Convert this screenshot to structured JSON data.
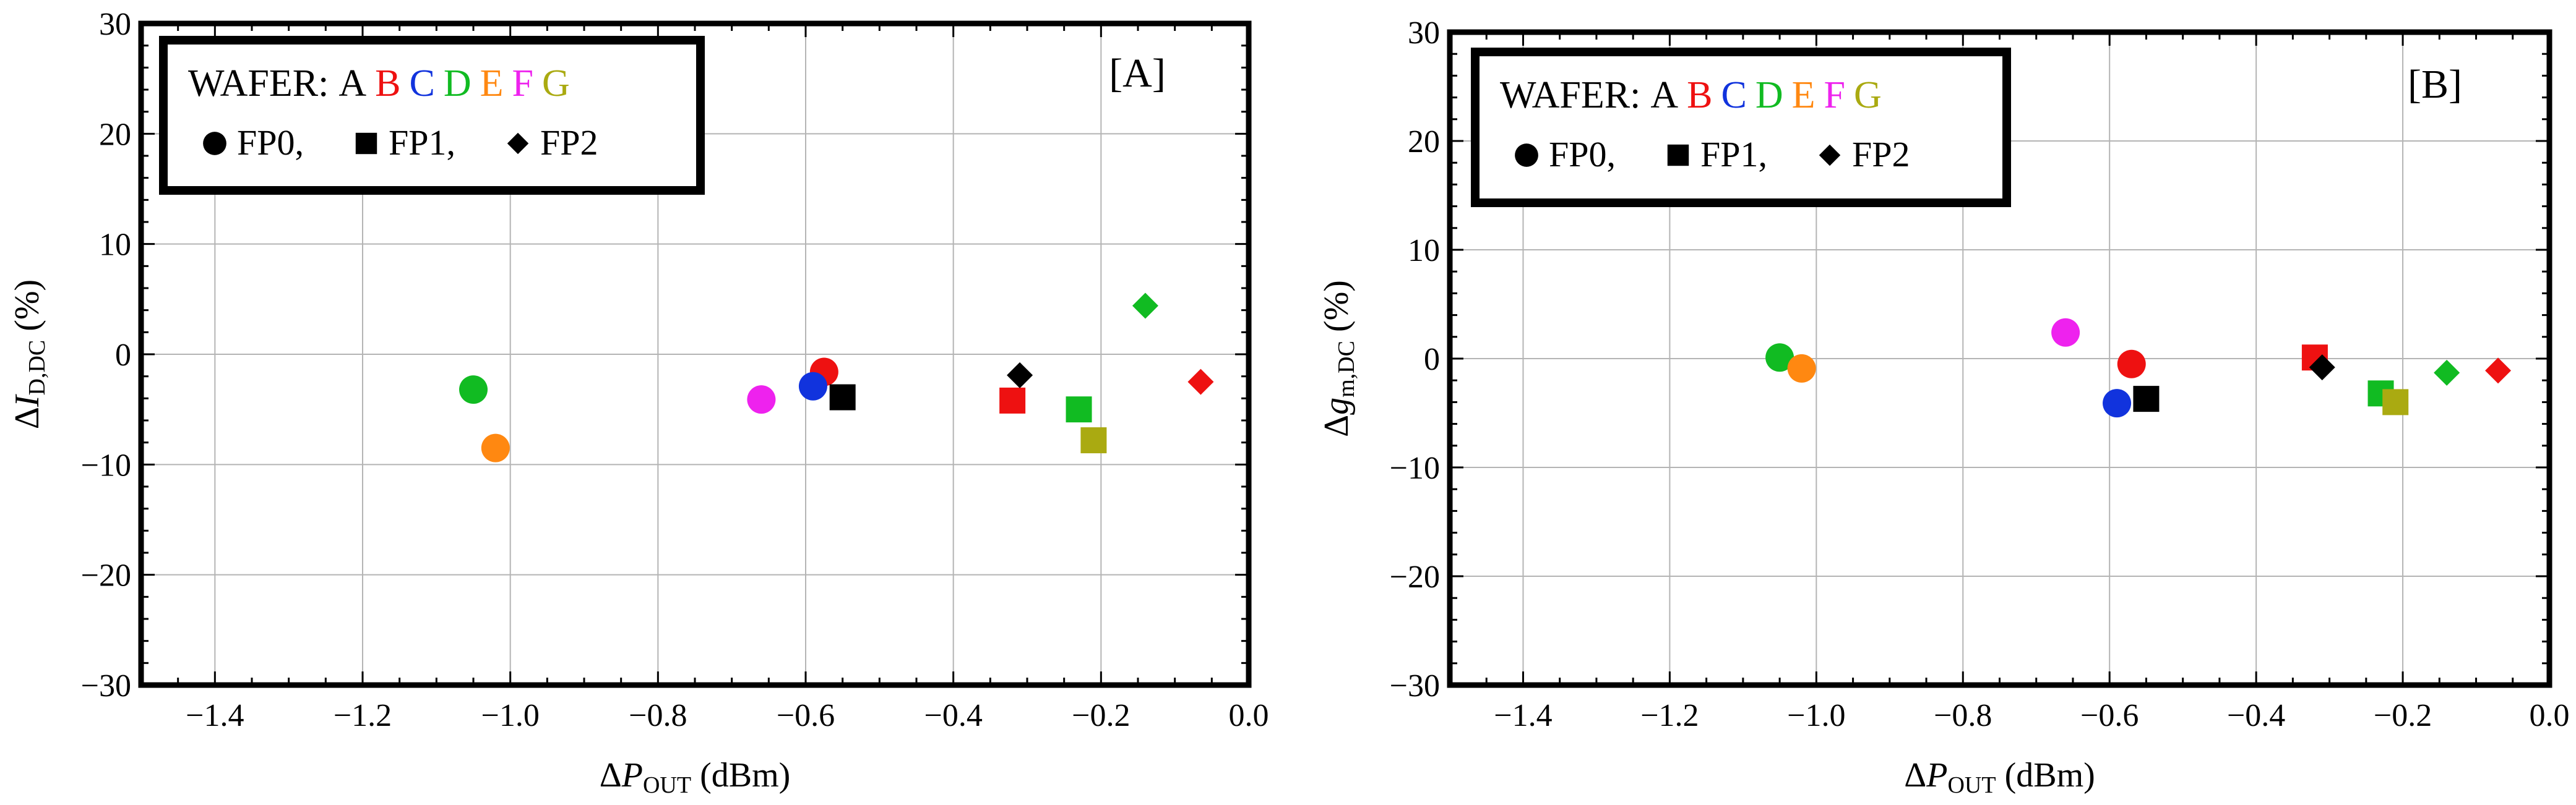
{
  "figure_legend": {
    "wafer_prefix": "WAFER:",
    "wafers": [
      {
        "letter": "A",
        "color": "#000000"
      },
      {
        "letter": "B",
        "color": "#ee1111"
      },
      {
        "letter": "C",
        "color": "#1133dd"
      },
      {
        "letter": "D",
        "color": "#11bb22"
      },
      {
        "letter": "E",
        "color": "#ff8811"
      },
      {
        "letter": "F",
        "color": "#ee22ee"
      },
      {
        "letter": "G",
        "color": "#aaaa11"
      }
    ],
    "fp_items": [
      {
        "shape": "circle",
        "label": "FP0,"
      },
      {
        "shape": "square",
        "label": "FP1,"
      },
      {
        "shape": "diamond",
        "label": "FP2"
      }
    ]
  },
  "chart_data": [
    {
      "type": "scatter",
      "panel_label": "[A]",
      "xlabel": {
        "prefix": "Δ",
        "var": "P",
        "sub": "OUT",
        "suffix": " (dBm)"
      },
      "ylabel": {
        "prefix": "Δ",
        "var": "I",
        "sub": "D,DC",
        "suffix": " (%)"
      },
      "xlim": [
        -1.5,
        0.0
      ],
      "ylim": [
        -30,
        30
      ],
      "xticks": [
        -1.4,
        -1.2,
        -1.0,
        -0.8,
        -0.6,
        -0.4,
        -0.2,
        0.0
      ],
      "xtick_labels": [
        "−1.4",
        "−1.2",
        "−1.0",
        "−0.8",
        "−0.6",
        "−0.4",
        "−0.2",
        "0.0"
      ],
      "yticks": [
        -30,
        -20,
        -10,
        0,
        10,
        20,
        30
      ],
      "ytick_labels": [
        "−30",
        "−20",
        "−10",
        "0",
        "10",
        "20",
        "30"
      ],
      "grid": true,
      "points": [
        {
          "wafer": "D",
          "fp": "FP0",
          "x": -1.05,
          "y": -3.2
        },
        {
          "wafer": "E",
          "fp": "FP0",
          "x": -1.02,
          "y": -8.5
        },
        {
          "wafer": "F",
          "fp": "FP0",
          "x": -0.66,
          "y": -4.1
        },
        {
          "wafer": "B",
          "fp": "FP0",
          "x": -0.575,
          "y": -1.6
        },
        {
          "wafer": "C",
          "fp": "FP0",
          "x": -0.59,
          "y": -2.9
        },
        {
          "wafer": "A",
          "fp": "FP1",
          "x": -0.55,
          "y": -3.9
        },
        {
          "wafer": "B",
          "fp": "FP1",
          "x": -0.32,
          "y": -4.2
        },
        {
          "wafer": "A",
          "fp": "FP2",
          "x": -0.31,
          "y": -1.9
        },
        {
          "wafer": "D",
          "fp": "FP1",
          "x": -0.23,
          "y": -5.0
        },
        {
          "wafer": "G",
          "fp": "FP1",
          "x": -0.21,
          "y": -7.8
        },
        {
          "wafer": "D",
          "fp": "FP2",
          "x": -0.14,
          "y": 4.4
        },
        {
          "wafer": "B",
          "fp": "FP2",
          "x": -0.065,
          "y": -2.5
        }
      ]
    },
    {
      "type": "scatter",
      "panel_label": "[B]",
      "xlabel": {
        "prefix": "Δ",
        "var": "P",
        "sub": "OUT",
        "suffix": " (dBm)"
      },
      "ylabel": {
        "prefix": "Δ",
        "var": "g",
        "sub": "m,DC",
        "suffix": " (%)"
      },
      "xlim": [
        -1.5,
        0.0
      ],
      "ylim": [
        -30,
        30
      ],
      "xticks": [
        -1.4,
        -1.2,
        -1.0,
        -0.8,
        -0.6,
        -0.4,
        -0.2,
        0.0
      ],
      "xtick_labels": [
        "−1.4",
        "−1.2",
        "−1.0",
        "−0.8",
        "−0.6",
        "−0.4",
        "−0.2",
        "0.0"
      ],
      "yticks": [
        -30,
        -20,
        -10,
        0,
        10,
        20,
        30
      ],
      "ytick_labels": [
        "−30",
        "−20",
        "−10",
        "0",
        "10",
        "20",
        "30"
      ],
      "grid": true,
      "points": [
        {
          "wafer": "D",
          "fp": "FP0",
          "x": -1.05,
          "y": 0.1
        },
        {
          "wafer": "E",
          "fp": "FP0",
          "x": -1.02,
          "y": -0.9
        },
        {
          "wafer": "F",
          "fp": "FP0",
          "x": -0.66,
          "y": 2.4
        },
        {
          "wafer": "B",
          "fp": "FP0",
          "x": -0.57,
          "y": -0.5
        },
        {
          "wafer": "C",
          "fp": "FP0",
          "x": -0.59,
          "y": -4.1
        },
        {
          "wafer": "A",
          "fp": "FP1",
          "x": -0.55,
          "y": -3.7
        },
        {
          "wafer": "B",
          "fp": "FP1",
          "x": -0.32,
          "y": 0.1
        },
        {
          "wafer": "A",
          "fp": "FP2",
          "x": -0.31,
          "y": -0.8
        },
        {
          "wafer": "D",
          "fp": "FP1",
          "x": -0.23,
          "y": -3.2
        },
        {
          "wafer": "G",
          "fp": "FP1",
          "x": -0.21,
          "y": -4.0
        },
        {
          "wafer": "D",
          "fp": "FP2",
          "x": -0.14,
          "y": -1.3
        },
        {
          "wafer": "B",
          "fp": "FP2",
          "x": -0.07,
          "y": -1.1
        }
      ]
    }
  ]
}
